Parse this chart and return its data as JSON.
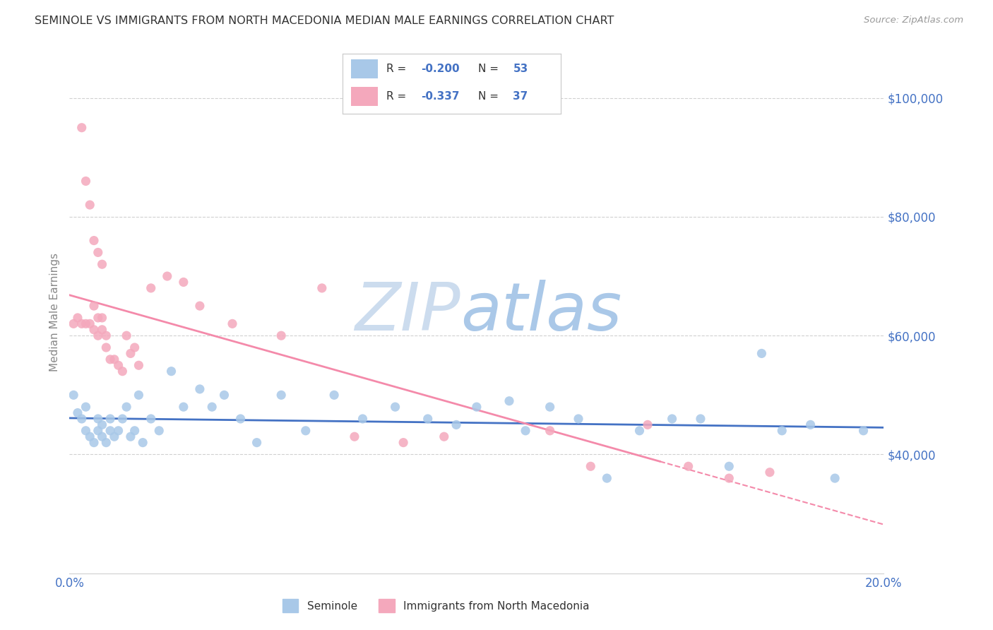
{
  "title": "SEMINOLE VS IMMIGRANTS FROM NORTH MACEDONIA MEDIAN MALE EARNINGS CORRELATION CHART",
  "source": "Source: ZipAtlas.com",
  "ylabel": "Median Male Earnings",
  "r_blue": -0.2,
  "n_blue": 53,
  "r_pink": -0.337,
  "n_pink": 37,
  "color_blue": "#a8c8e8",
  "color_pink": "#f4a8bc",
  "trend_blue": "#4472c4",
  "trend_pink": "#f48aaa",
  "axis_color": "#4472c4",
  "title_color": "#333333",
  "xmin": 0.0,
  "xmax": 0.2,
  "ymin": 20000,
  "ymax": 108000,
  "yticks": [
    40000,
    60000,
    80000,
    100000
  ],
  "ytick_labels": [
    "$40,000",
    "$60,000",
    "$80,000",
    "$100,000"
  ],
  "xticks": [
    0.0,
    0.05,
    0.1,
    0.15,
    0.2
  ],
  "xtick_labels": [
    "0.0%",
    "",
    "",
    "",
    "20.0%"
  ],
  "blue_x": [
    0.001,
    0.002,
    0.003,
    0.004,
    0.004,
    0.005,
    0.006,
    0.007,
    0.007,
    0.008,
    0.008,
    0.009,
    0.01,
    0.01,
    0.011,
    0.012,
    0.013,
    0.014,
    0.015,
    0.016,
    0.017,
    0.018,
    0.02,
    0.022,
    0.025,
    0.028,
    0.032,
    0.035,
    0.038,
    0.042,
    0.046,
    0.052,
    0.058,
    0.065,
    0.072,
    0.08,
    0.088,
    0.095,
    0.1,
    0.108,
    0.112,
    0.118,
    0.125,
    0.132,
    0.14,
    0.148,
    0.155,
    0.162,
    0.17,
    0.175,
    0.182,
    0.188,
    0.195
  ],
  "blue_y": [
    50000,
    47000,
    46000,
    44000,
    48000,
    43000,
    42000,
    44000,
    46000,
    43000,
    45000,
    42000,
    44000,
    46000,
    43000,
    44000,
    46000,
    48000,
    43000,
    44000,
    50000,
    42000,
    46000,
    44000,
    54000,
    48000,
    51000,
    48000,
    50000,
    46000,
    42000,
    50000,
    44000,
    50000,
    46000,
    48000,
    46000,
    45000,
    48000,
    49000,
    44000,
    48000,
    46000,
    36000,
    44000,
    46000,
    46000,
    38000,
    57000,
    44000,
    45000,
    36000,
    44000
  ],
  "pink_x": [
    0.001,
    0.002,
    0.003,
    0.004,
    0.005,
    0.006,
    0.006,
    0.007,
    0.007,
    0.008,
    0.008,
    0.009,
    0.009,
    0.01,
    0.011,
    0.012,
    0.013,
    0.014,
    0.015,
    0.016,
    0.017,
    0.02,
    0.024,
    0.028,
    0.032,
    0.04,
    0.052,
    0.062,
    0.07,
    0.082,
    0.092,
    0.118,
    0.128,
    0.142,
    0.152,
    0.162,
    0.172
  ],
  "pink_y": [
    62000,
    63000,
    62000,
    62000,
    62000,
    61000,
    65000,
    60000,
    63000,
    61000,
    63000,
    60000,
    58000,
    56000,
    56000,
    55000,
    54000,
    60000,
    57000,
    58000,
    55000,
    68000,
    70000,
    69000,
    65000,
    62000,
    60000,
    68000,
    43000,
    42000,
    43000,
    44000,
    38000,
    45000,
    38000,
    36000,
    37000
  ],
  "pink_extra_high": [
    [
      0.003,
      95000
    ],
    [
      0.004,
      86000
    ],
    [
      0.005,
      82000
    ],
    [
      0.006,
      76000
    ],
    [
      0.007,
      74000
    ],
    [
      0.008,
      72000
    ]
  ],
  "watermark_zip": "ZIP",
  "watermark_atlas": "atlas",
  "watermark_color_zip": "#c8d8ec",
  "watermark_color_atlas": "#aac4e0",
  "background_color": "#ffffff",
  "grid_color": "#d0d0d0"
}
